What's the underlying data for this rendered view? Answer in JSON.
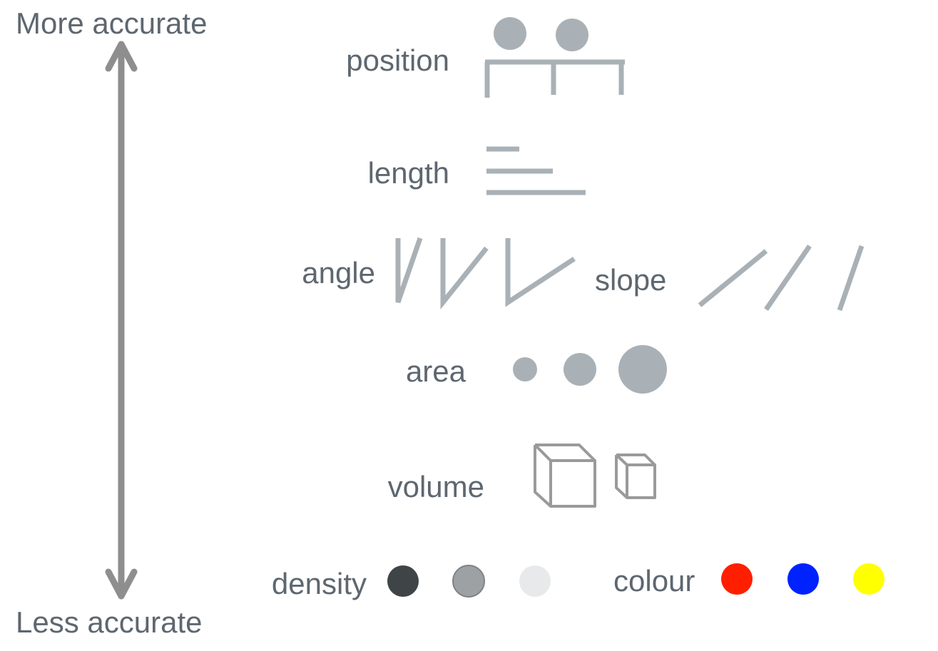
{
  "axis": {
    "top_label": "More accurate",
    "bottom_label": "Less accurate"
  },
  "encodings": {
    "position": "position",
    "length": "length",
    "angle": "angle",
    "slope": "slope",
    "area": "area",
    "volume": "volume",
    "density": "density",
    "colour": "colour"
  },
  "colors": {
    "text": "#5e6770",
    "glyph": "#a9b1b6",
    "arrow": "#8e8e8e",
    "cube": "#9a9a9a",
    "density": [
      "#3f4447",
      "#9da1a4",
      "#e8e9ea"
    ],
    "colour": [
      "#ff1e00",
      "#0022ff",
      "#ffff00"
    ]
  }
}
